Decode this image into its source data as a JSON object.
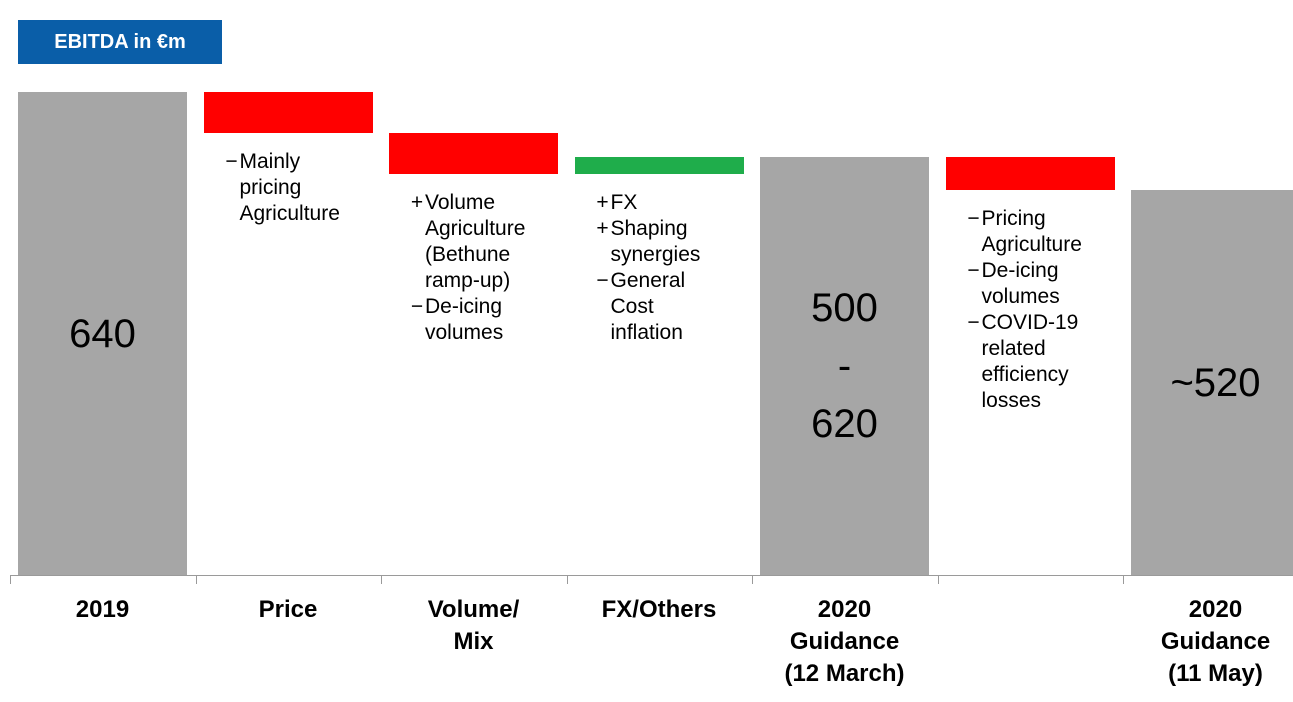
{
  "chart_data": {
    "type": "waterfall",
    "title": "EBITDA in €m",
    "categories": [
      "2019",
      "Price",
      "Volume/\nMix",
      "FX/Others",
      "2020\nGuidance\n(12 March)",
      null,
      "2020\nGuidance\n(11 May)"
    ],
    "measures": [
      "total",
      "relative",
      "relative",
      "relative",
      "total",
      "relative",
      "total"
    ],
    "values": [
      640,
      -50,
      -50,
      20,
      560,
      -40,
      520
    ],
    "value_labels": [
      "640",
      null,
      null,
      null,
      "500\n-\n620",
      null,
      "~520"
    ],
    "annotations": [
      null,
      [
        {
          "sign": "−",
          "text": "Mainly\npricing\nAgriculture"
        }
      ],
      [
        {
          "sign": "+",
          "text": "Volume\nAgriculture\n(Bethune\nramp-up)"
        },
        {
          "sign": "−",
          "text": "De-icing\nvolumes"
        }
      ],
      [
        {
          "sign": "+",
          "text": "FX"
        },
        {
          "sign": "+",
          "text": "Shaping\nsynergies"
        },
        {
          "sign": "−",
          "text": "General\nCost\ninflation"
        }
      ],
      null,
      [
        {
          "sign": "−",
          "text": "Pricing\nAgriculture"
        },
        {
          "sign": "−",
          "text": "De-icing\nvolumes"
        },
        {
          "sign": "−",
          "text": "COVID-19\nrelated\nefficiency\nlosses"
        }
      ],
      null
    ],
    "colors": {
      "total": "#a6a6a6",
      "decrease": "#ff0000",
      "increase": "#1fad4b"
    },
    "ylim": [
      50,
      640
    ]
  }
}
